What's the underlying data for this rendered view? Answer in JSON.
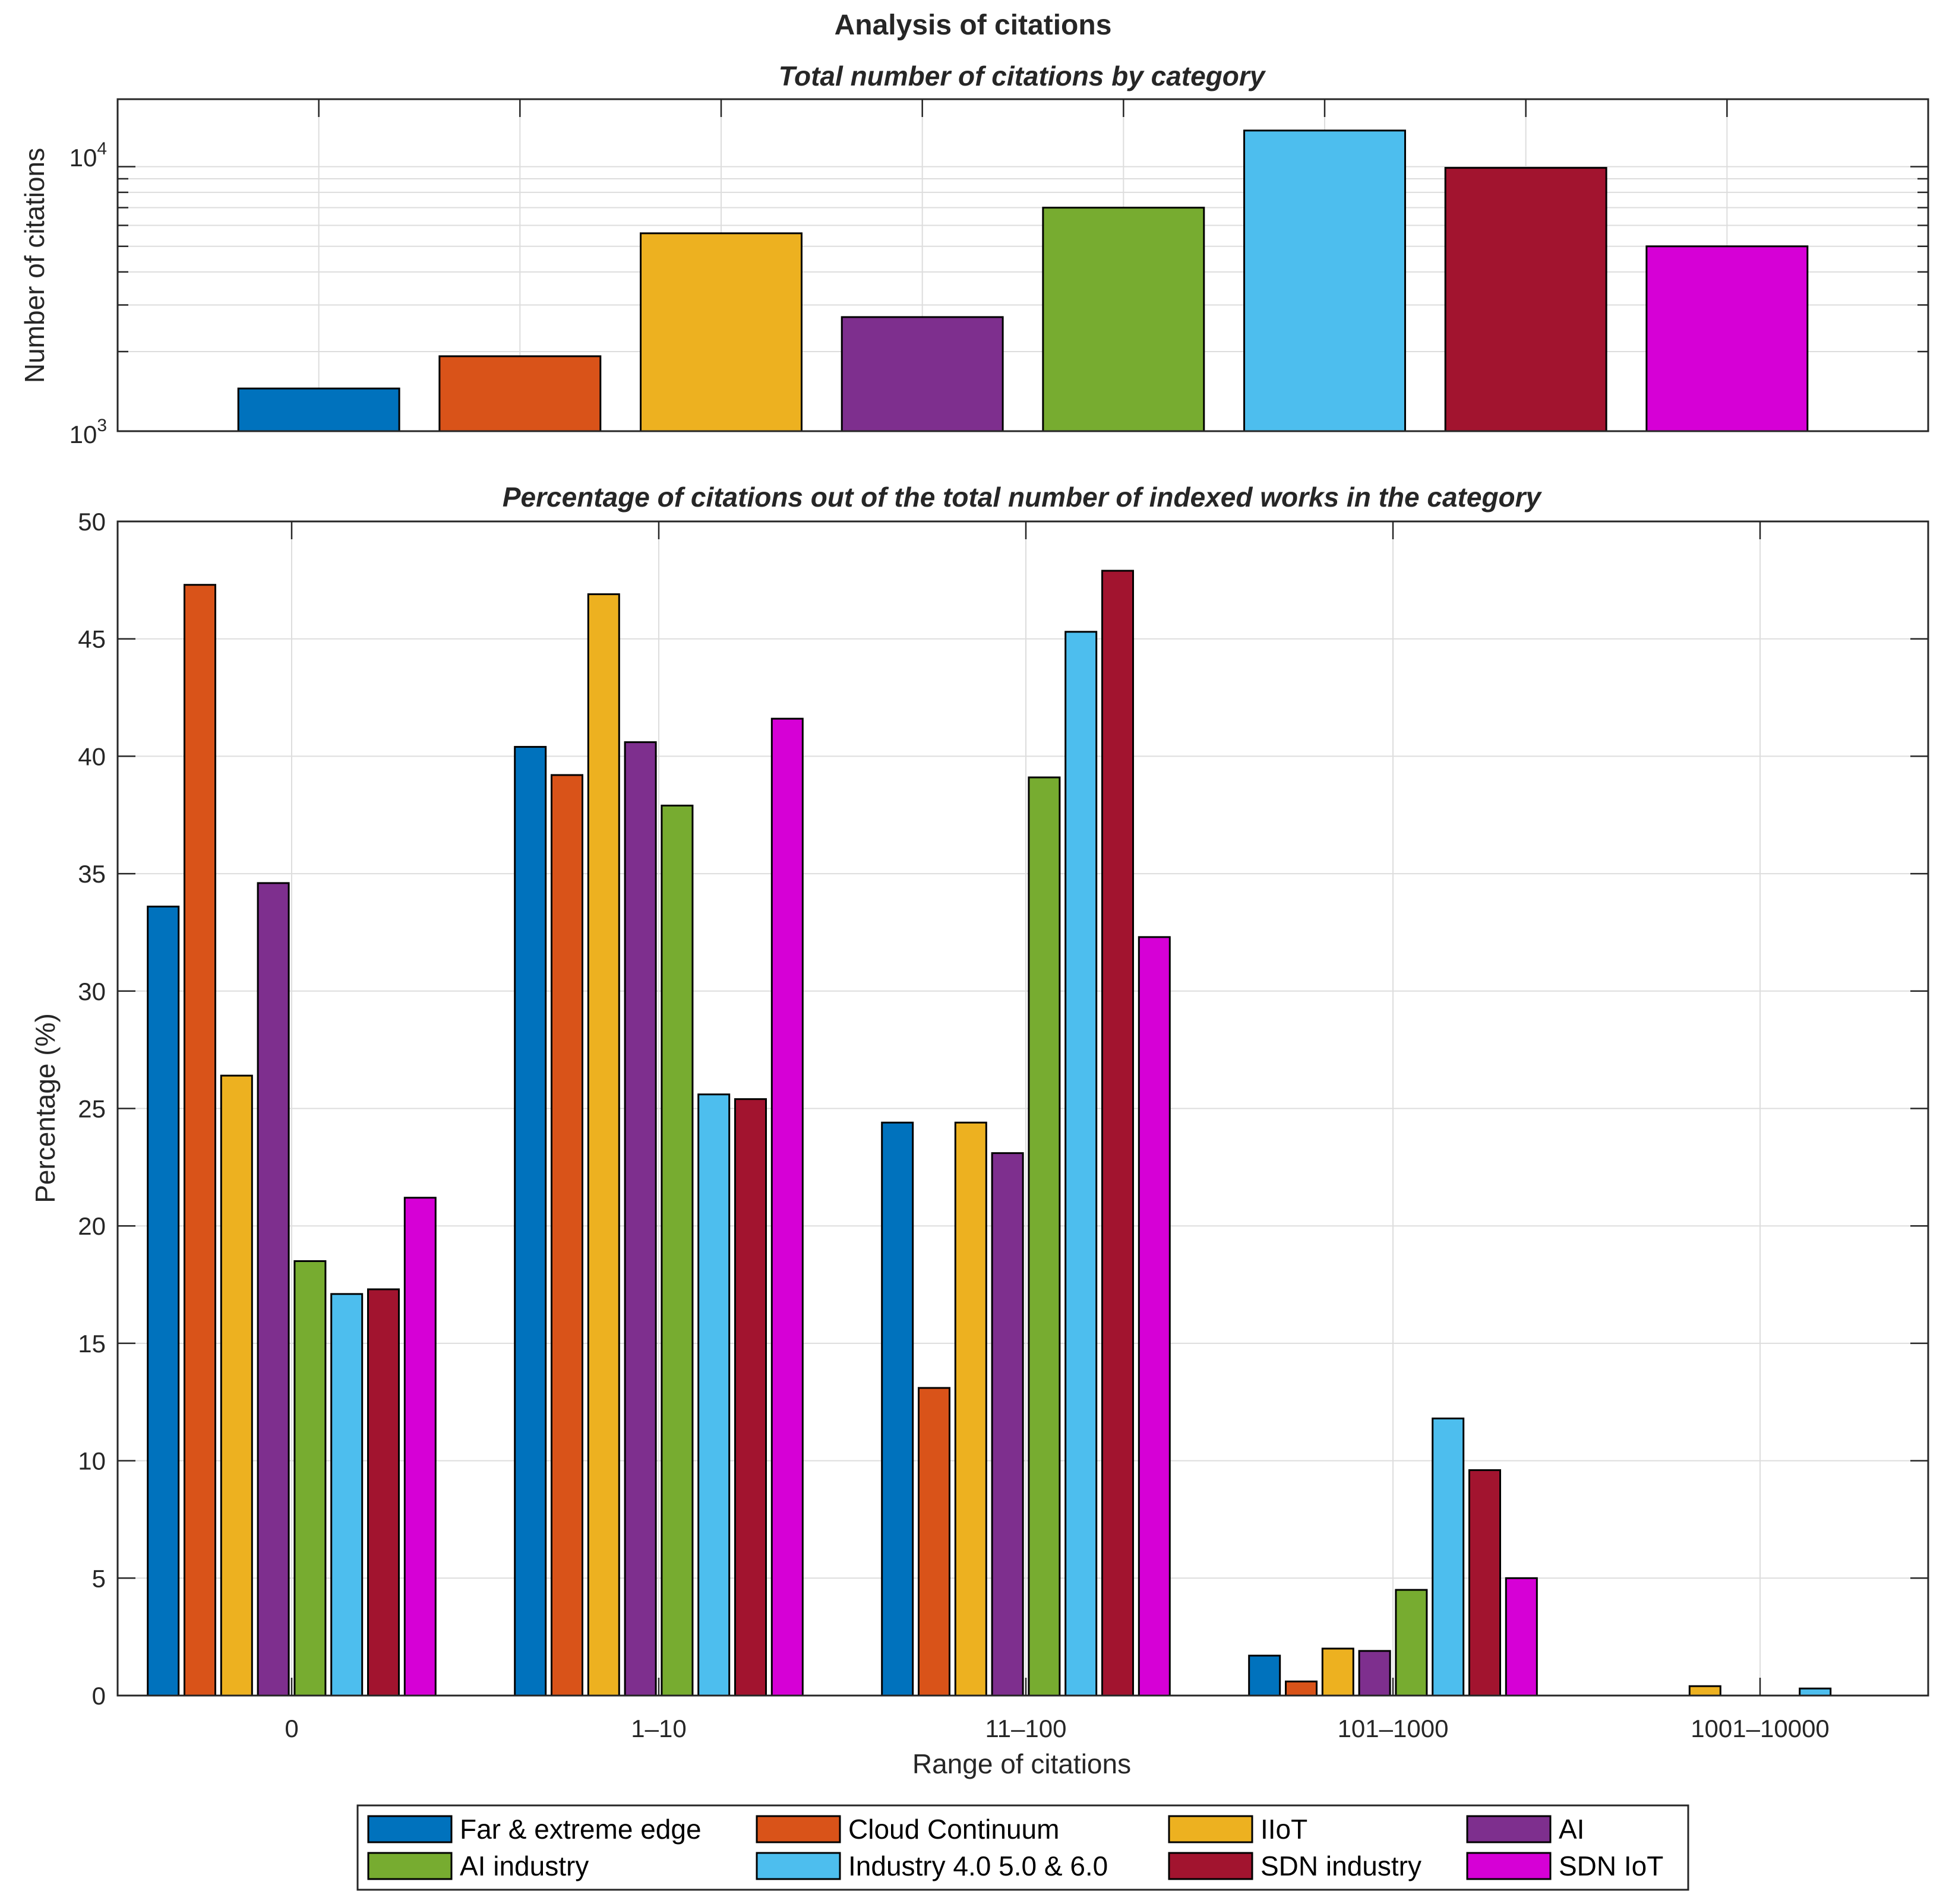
{
  "figure_title": "Analysis of citations",
  "colors": [
    "#0072BD",
    "#D95319",
    "#EDB120",
    "#7E2F8E",
    "#77AC30",
    "#4DBEEE",
    "#A2142F",
    "#D600D6"
  ],
  "legend": [
    "Far & extreme edge",
    "Cloud Continuum",
    "IIoT",
    "AI",
    "AI industry",
    "Industry 4.0 5.0 & 6.0",
    "SDN industry",
    "SDN IoT"
  ],
  "chart_data": [
    {
      "type": "bar",
      "title": "Total number of citations by category",
      "xlabel": "",
      "ylabel": "Number of citations",
      "yscale": "log",
      "ylim": [
        1000,
        18000
      ],
      "ytick_labels": [
        {
          "base": "10",
          "exp": "3"
        },
        {
          "base": "10",
          "exp": "4"
        }
      ],
      "grid": true,
      "categories": [
        "Far & extreme edge",
        "Cloud Continuum",
        "IIoT",
        "AI",
        "AI industry",
        "Industry 4.0 5.0 & 6.0",
        "SDN industry",
        "SDN IoT"
      ],
      "values": [
        1450,
        1920,
        5600,
        2700,
        7000,
        13700,
        9900,
        5000
      ]
    },
    {
      "type": "bar",
      "title": "Percentage of citations out of the total number of indexed works in the category",
      "xlabel": "Range of citations",
      "ylabel": "Percentage (%)",
      "ylim": [
        0,
        50
      ],
      "yticks": [
        0,
        5,
        10,
        15,
        20,
        25,
        30,
        35,
        40,
        45,
        50
      ],
      "grid": true,
      "categories": [
        "0",
        "1–10",
        "11–100",
        "101–1000",
        "1001–10000"
      ],
      "series": [
        {
          "name": "Far & extreme edge",
          "values": [
            33.6,
            40.4,
            24.4,
            1.7,
            0
          ]
        },
        {
          "name": "Cloud Continuum",
          "values": [
            47.3,
            39.2,
            13.1,
            0.6,
            0
          ]
        },
        {
          "name": "IIoT",
          "values": [
            26.4,
            46.9,
            24.4,
            2.0,
            0.4
          ]
        },
        {
          "name": "AI",
          "values": [
            34.6,
            40.6,
            23.1,
            1.9,
            0
          ]
        },
        {
          "name": "AI industry",
          "values": [
            18.5,
            37.9,
            39.1,
            4.5,
            0
          ]
        },
        {
          "name": "Industry 4.0 5.0 & 6.0",
          "values": [
            17.1,
            25.6,
            45.3,
            11.8,
            0.3
          ]
        },
        {
          "name": "SDN industry",
          "values": [
            17.3,
            25.4,
            47.9,
            9.6,
            0
          ]
        },
        {
          "name": "SDN IoT",
          "values": [
            21.2,
            41.6,
            32.3,
            5.0,
            0
          ]
        }
      ]
    }
  ]
}
